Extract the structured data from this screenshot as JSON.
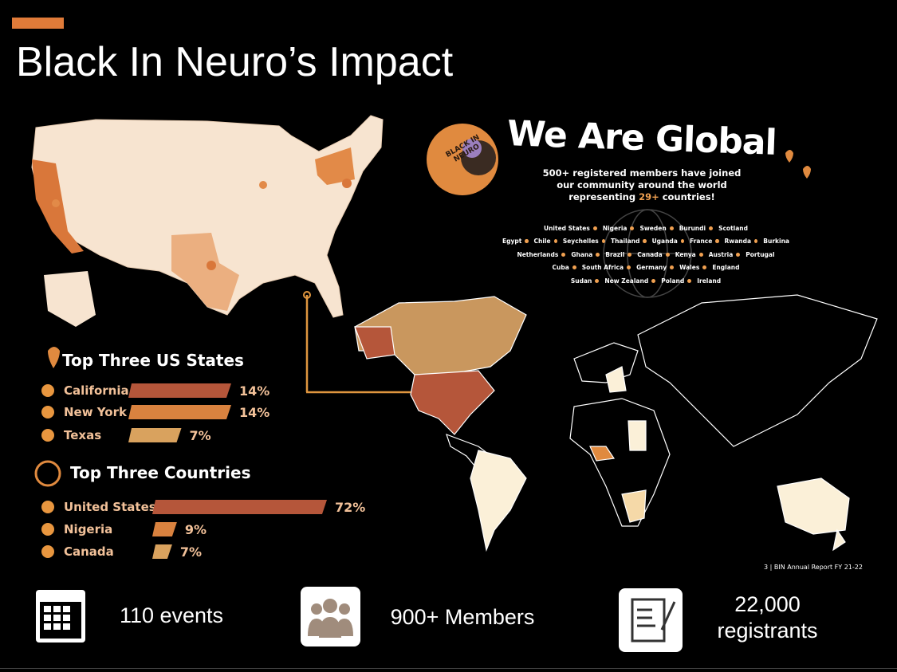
{
  "header": {
    "title": "Black In Neuro’s Impact"
  },
  "global": {
    "title": "We Are Global",
    "logo": "BLACK IN NEURO",
    "description": [
      "500+ registered members have joined our community around the world representing ",
      "29+",
      " countries!"
    ],
    "countries": [
      [
        "United States",
        "Nigeria",
        "Sweden",
        "Burundi",
        "Scotland"
      ],
      [
        "Egypt",
        "Chile",
        "Seychelles",
        "Thailand",
        "Uganda",
        "France",
        "Rwanda",
        "Burkina"
      ],
      [
        "Netherlands",
        "Ghana",
        "Brazil",
        "Canada",
        "Kenya",
        "Austria",
        "Portugal"
      ],
      [
        "Cuba",
        "South Africa",
        "Germany",
        "Wales",
        "England"
      ],
      [
        "Sudan",
        "New Zealand",
        "Poland",
        "Ireland"
      ]
    ],
    "footnote": "3 | BIN Annual Report FY 21-22"
  },
  "us_states": {
    "title": "Top Three US States",
    "items": [
      {
        "name": "California",
        "value": 14,
        "label": "14%"
      },
      {
        "name": "New York",
        "value": 14,
        "label": "14%"
      },
      {
        "name": "Texas",
        "value": 7,
        "label": "7%"
      }
    ]
  },
  "top_countries": {
    "title": "Top Three Countries",
    "items": [
      {
        "name": "United States",
        "value": 72,
        "label": "72%"
      },
      {
        "name": "Nigeria",
        "value": 9,
        "label": "9%"
      },
      {
        "name": "Canada",
        "value": 7,
        "label": "7%"
      }
    ]
  },
  "stats": [
    "110 events",
    "900+ Members",
    "22,000 registrants"
  ]
}
